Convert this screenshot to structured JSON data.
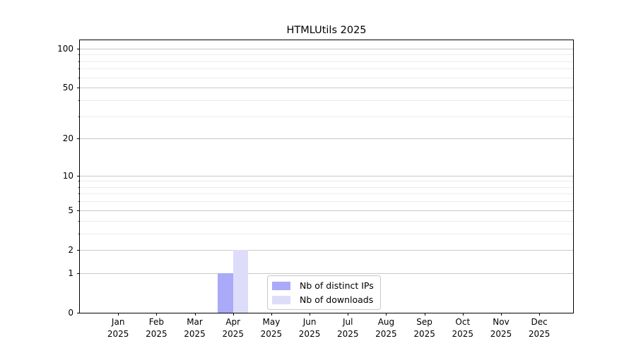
{
  "chart_data": {
    "type": "bar",
    "title": "HTMLUtils 2025",
    "categories": [
      {
        "month": "Jan",
        "year": "2025"
      },
      {
        "month": "Feb",
        "year": "2025"
      },
      {
        "month": "Mar",
        "year": "2025"
      },
      {
        "month": "Apr",
        "year": "2025"
      },
      {
        "month": "May",
        "year": "2025"
      },
      {
        "month": "Jun",
        "year": "2025"
      },
      {
        "month": "Jul",
        "year": "2025"
      },
      {
        "month": "Aug",
        "year": "2025"
      },
      {
        "month": "Sep",
        "year": "2025"
      },
      {
        "month": "Oct",
        "year": "2025"
      },
      {
        "month": "Nov",
        "year": "2025"
      },
      {
        "month": "Dec",
        "year": "2025"
      }
    ],
    "series": [
      {
        "name": "Nb of distinct IPs",
        "color": "#aaaaf8",
        "values": [
          0,
          0,
          0,
          1,
          0,
          0,
          0,
          0,
          0,
          0,
          0,
          0
        ]
      },
      {
        "name": "Nb of downloads",
        "color": "#ddddfa",
        "values": [
          0,
          0,
          0,
          2,
          0,
          0,
          0,
          0,
          0,
          0,
          0,
          0
        ]
      }
    ],
    "xlabel": "",
    "ylabel": "",
    "yscale": "log1p",
    "ylim": [
      0,
      116
    ],
    "yticks_major": [
      0,
      1,
      2,
      5,
      10,
      20,
      50,
      100
    ],
    "yticks_minor": [
      3,
      4,
      6,
      7,
      8,
      9,
      30,
      40,
      60,
      70,
      80,
      90
    ],
    "grid": true,
    "legend_position": "lower center"
  },
  "colors": {
    "background": "#ffffff",
    "spine": "#000000",
    "text": "#000000",
    "major_grid": "#c9c9c9",
    "minor_grid": "#ececec",
    "legend_border": "#c8c8c8",
    "bar_distinct_ips": "#aaaaf8",
    "bar_downloads": "#ddddfa"
  }
}
